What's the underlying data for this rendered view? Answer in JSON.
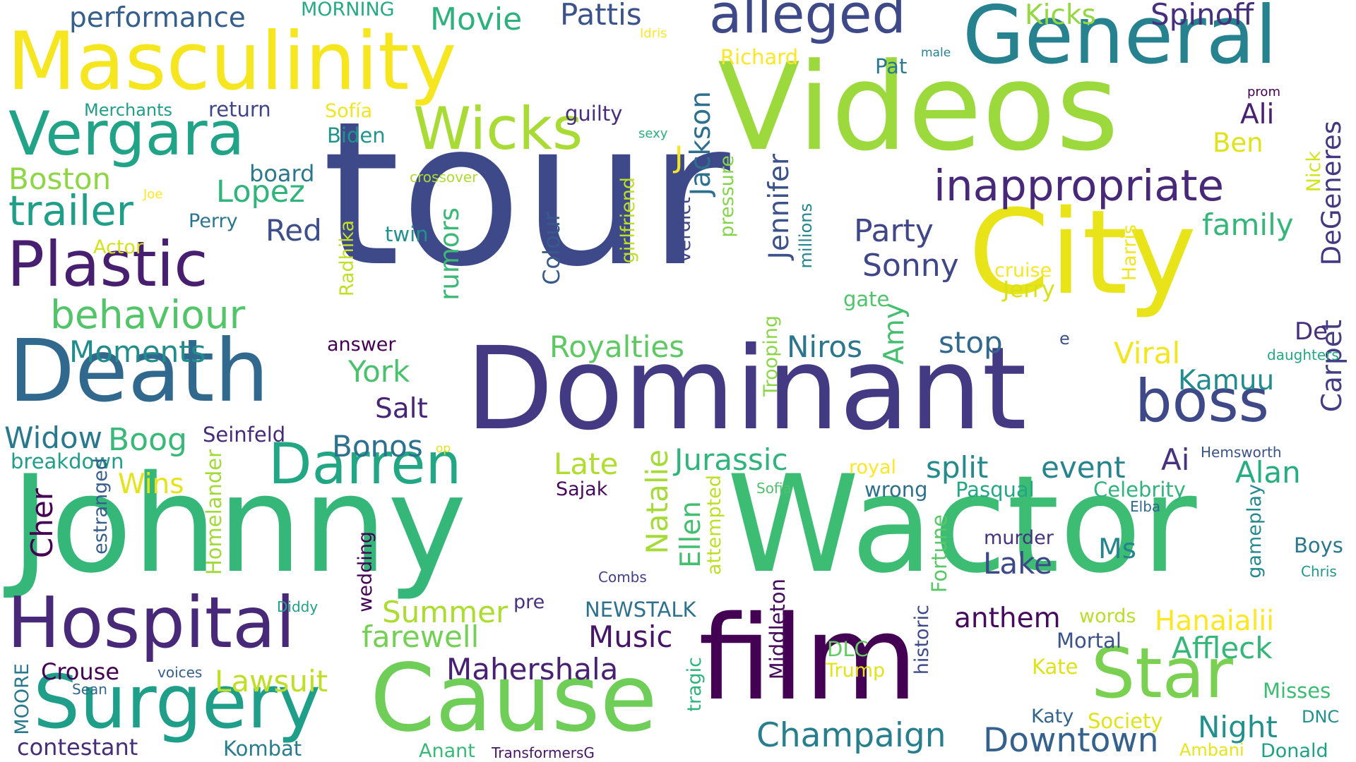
{
  "cloud": {
    "palette": [
      "#fde725",
      "#b5de2b",
      "#6ece58",
      "#35b779",
      "#1f9e89",
      "#26828e",
      "#31688e",
      "#3e4989",
      "#482878",
      "#440154"
    ],
    "words": [
      {
        "text": "tour",
        "color": "#3e4989"
      },
      {
        "text": "Videos",
        "color": "#9bd93c"
      },
      {
        "text": "City",
        "color": "#e8e419"
      },
      {
        "text": "Dominant",
        "color": "#443983"
      },
      {
        "text": "Johnny",
        "color": "#35b779"
      },
      {
        "text": "Wactor",
        "color": "#3dbc74"
      },
      {
        "text": "film",
        "color": "#440154"
      },
      {
        "text": "Cause",
        "color": "#6ece58"
      },
      {
        "text": "Masculinity",
        "color": "#f6e620"
      },
      {
        "text": "General",
        "color": "#26828e"
      },
      {
        "text": "Death",
        "color": "#31688e"
      },
      {
        "text": "Hospital",
        "color": "#482878"
      },
      {
        "text": "Surgery",
        "color": "#1f9e89"
      },
      {
        "text": "Star",
        "color": "#7ad151"
      },
      {
        "text": "Darren",
        "color": "#22a785"
      },
      {
        "text": "boss",
        "color": "#3e4989"
      },
      {
        "text": "Plastic",
        "color": "#481f70"
      },
      {
        "text": "Vergara",
        "color": "#20a386"
      },
      {
        "text": "Wicks",
        "color": "#a8db34"
      },
      {
        "text": "alleged",
        "color": "#3e4989"
      },
      {
        "text": "inappropriate",
        "color": "#482878"
      },
      {
        "text": "behaviour",
        "color": "#52c569"
      },
      {
        "text": "trailer",
        "color": "#1f9e89"
      },
      {
        "text": "Champaign",
        "color": "#277f8e"
      },
      {
        "text": "Downtown",
        "color": "#34618d"
      },
      {
        "text": "Jennifer",
        "color": "#3b528b"
      },
      {
        "text": "Jackson",
        "color": "#2d708e"
      },
      {
        "text": "Carpet",
        "color": "#433e85"
      },
      {
        "text": "DeGeneres",
        "color": "#453781"
      },
      {
        "text": "performance",
        "color": "#355f8d"
      },
      {
        "text": "Movie",
        "color": "#2db27d"
      },
      {
        "text": "Pattis",
        "color": "#3b528b"
      },
      {
        "text": "Kicks",
        "color": "#93d741"
      },
      {
        "text": "Spinoff",
        "color": "#46307e"
      },
      {
        "text": "MORNING",
        "color": "#25ab82"
      },
      {
        "text": "Idris",
        "color": "#fde725"
      },
      {
        "text": "Richard",
        "color": "#fde725"
      },
      {
        "text": "male",
        "color": "#25848e"
      },
      {
        "text": "Pat",
        "color": "#2a788e"
      },
      {
        "text": "prom",
        "color": "#440154"
      },
      {
        "text": "Merchants",
        "color": "#1f9e89"
      },
      {
        "text": "return",
        "color": "#404688"
      },
      {
        "text": "Sofía",
        "color": "#f1e51d"
      },
      {
        "text": "guilty",
        "color": "#472d7b"
      },
      {
        "text": "Ali",
        "color": "#482173"
      },
      {
        "text": "Biden",
        "color": "#1f958b"
      },
      {
        "text": "sexy",
        "color": "#2ab07f"
      },
      {
        "text": "Ben",
        "color": "#dfe318"
      },
      {
        "text": "J",
        "color": "#f6e620"
      },
      {
        "text": "Boston",
        "color": "#8ed645"
      },
      {
        "text": "board",
        "color": "#2a788e"
      },
      {
        "text": "crossover",
        "color": "#addc30"
      },
      {
        "text": "Joe",
        "color": "#fde725"
      },
      {
        "text": "Lopez",
        "color": "#2fb47c"
      },
      {
        "text": "Perry",
        "color": "#2a768e"
      },
      {
        "text": "Red",
        "color": "#3d4e8a"
      },
      {
        "text": "twin",
        "color": "#20928c"
      },
      {
        "text": "Actor",
        "color": "#d5e21a"
      },
      {
        "text": "Party",
        "color": "#404688"
      },
      {
        "text": "family",
        "color": "#35b779"
      },
      {
        "text": "Nick",
        "color": "#d2e21b"
      },
      {
        "text": "Harris",
        "color": "#f1e51d"
      },
      {
        "text": "cruise",
        "color": "#f8e621"
      },
      {
        "text": "Jerry",
        "color": "#d8e219"
      },
      {
        "text": "Sonny",
        "color": "#3f4788"
      },
      {
        "text": "gate",
        "color": "#50c46a"
      },
      {
        "text": "Radhika",
        "color": "#c2df23"
      },
      {
        "text": "rumors",
        "color": "#3aba76"
      },
      {
        "text": "girlfriend",
        "color": "#bddf26"
      },
      {
        "text": "verdict",
        "color": "#3f4788"
      },
      {
        "text": "pressure",
        "color": "#84d44b"
      },
      {
        "text": "millions",
        "color": "#24868e"
      },
      {
        "text": "Colour",
        "color": "#375a8c"
      },
      {
        "text": "Moments",
        "color": "#228c8d"
      },
      {
        "text": "answer",
        "color": "#440154"
      },
      {
        "text": "Royalties",
        "color": "#5ec962"
      },
      {
        "text": "Niros",
        "color": "#2a768e"
      },
      {
        "text": "Trooping",
        "color": "#8bd646"
      },
      {
        "text": "Amy",
        "color": "#44bf70"
      },
      {
        "text": "stop",
        "color": "#31688e"
      },
      {
        "text": "e",
        "color": "#3b528b"
      },
      {
        "text": "Viral",
        "color": "#f4e61e"
      },
      {
        "text": "De",
        "color": "#46307e"
      },
      {
        "text": "daughters",
        "color": "#22a884"
      },
      {
        "text": "York",
        "color": "#4ac16d"
      },
      {
        "text": "Salt",
        "color": "#482576"
      },
      {
        "text": "Kamuu",
        "color": "#228b8d"
      },
      {
        "text": "Widow",
        "color": "#29798e"
      },
      {
        "text": "Boog",
        "color": "#38b977"
      },
      {
        "text": "Seinfeld",
        "color": "#472a7a"
      },
      {
        "text": "Bonos",
        "color": "#2c728e"
      },
      {
        "text": "op",
        "color": "#e2e418"
      },
      {
        "text": "Late",
        "color": "#b0dd2f"
      },
      {
        "text": "Jurassic",
        "color": "#2fb47c"
      },
      {
        "text": "split",
        "color": "#238a8d"
      },
      {
        "text": "event",
        "color": "#25848e"
      },
      {
        "text": "Ai",
        "color": "#46327e"
      },
      {
        "text": "Hemsworth",
        "color": "#3b528b"
      },
      {
        "text": "breakdown",
        "color": "#1f9e89"
      },
      {
        "text": "Wins",
        "color": "#e5e419"
      },
      {
        "text": "Sajak",
        "color": "#460a5d"
      },
      {
        "text": "royal",
        "color": "#fde725"
      },
      {
        "text": "Sofia",
        "color": "#4ec36b"
      },
      {
        "text": "wrong",
        "color": "#2d708e"
      },
      {
        "text": "Pasqual",
        "color": "#22a884"
      },
      {
        "text": "Celebrity",
        "color": "#2fb47c"
      },
      {
        "text": "Alan",
        "color": "#26ad81"
      },
      {
        "text": "Elba",
        "color": "#31688e"
      },
      {
        "text": "Cher",
        "color": "#440154"
      },
      {
        "text": "estranged",
        "color": "#365d8d"
      },
      {
        "text": "Homelander",
        "color": "#a2da37"
      },
      {
        "text": "Natalie",
        "color": "#a5db36"
      },
      {
        "text": "Ellen",
        "color": "#44bf70"
      },
      {
        "text": "attempted",
        "color": "#bddf26"
      },
      {
        "text": "Fortune",
        "color": "#58c765"
      },
      {
        "text": "murder",
        "color": "#46337f"
      },
      {
        "text": "Lake",
        "color": "#3e4989"
      },
      {
        "text": "Ms",
        "color": "#25858e"
      },
      {
        "text": "gameplay",
        "color": "#23898e"
      },
      {
        "text": "Boys",
        "color": "#2a788e"
      },
      {
        "text": "Chris",
        "color": "#1f978b"
      },
      {
        "text": "Combs",
        "color": "#433e85"
      },
      {
        "text": "wedding",
        "color": "#440154"
      },
      {
        "text": "Diddy",
        "color": "#1fa187"
      },
      {
        "text": "pre",
        "color": "#46317e"
      },
      {
        "text": "NEWSTALK",
        "color": "#2c728e"
      },
      {
        "text": "Summer",
        "color": "#addc30"
      },
      {
        "text": "farewell",
        "color": "#74d055"
      },
      {
        "text": "Music",
        "color": "#481668"
      },
      {
        "text": "Middleton",
        "color": "#460b5e"
      },
      {
        "text": "anthem",
        "color": "#460b5e"
      },
      {
        "text": "words",
        "color": "#b8de29"
      },
      {
        "text": "Hanaialii",
        "color": "#fde725"
      },
      {
        "text": "historic",
        "color": "#3e4989"
      },
      {
        "text": "Mortal",
        "color": "#3b528b"
      },
      {
        "text": "Affleck",
        "color": "#35b779"
      },
      {
        "text": "DLC",
        "color": "#63cb5f"
      },
      {
        "text": "Trump",
        "color": "#e2e418"
      },
      {
        "text": "Kate",
        "color": "#dde318"
      },
      {
        "text": "Mahershala",
        "color": "#482173"
      },
      {
        "text": "MOORE",
        "color": "#2a788e"
      },
      {
        "text": "Crouse",
        "color": "#440154"
      },
      {
        "text": "voices",
        "color": "#355e8d"
      },
      {
        "text": "Lawsuit",
        "color": "#bfdf25"
      },
      {
        "text": "Sean",
        "color": "#31688e"
      },
      {
        "text": "tragic",
        "color": "#2eb37c"
      },
      {
        "text": "Misses",
        "color": "#3dbc74"
      },
      {
        "text": "Society",
        "color": "#dfe318"
      },
      {
        "text": "DNC",
        "color": "#20928c"
      },
      {
        "text": "Katy",
        "color": "#32648e"
      },
      {
        "text": "Night",
        "color": "#21918c"
      },
      {
        "text": "contestant",
        "color": "#472c7a"
      },
      {
        "text": "Kombat",
        "color": "#287c8e"
      },
      {
        "text": "Anant",
        "color": "#38b977"
      },
      {
        "text": "TransformersG",
        "color": "#481467"
      },
      {
        "text": "Ambani",
        "color": "#e7e419"
      },
      {
        "text": "Donald",
        "color": "#1fa187"
      }
    ]
  }
}
